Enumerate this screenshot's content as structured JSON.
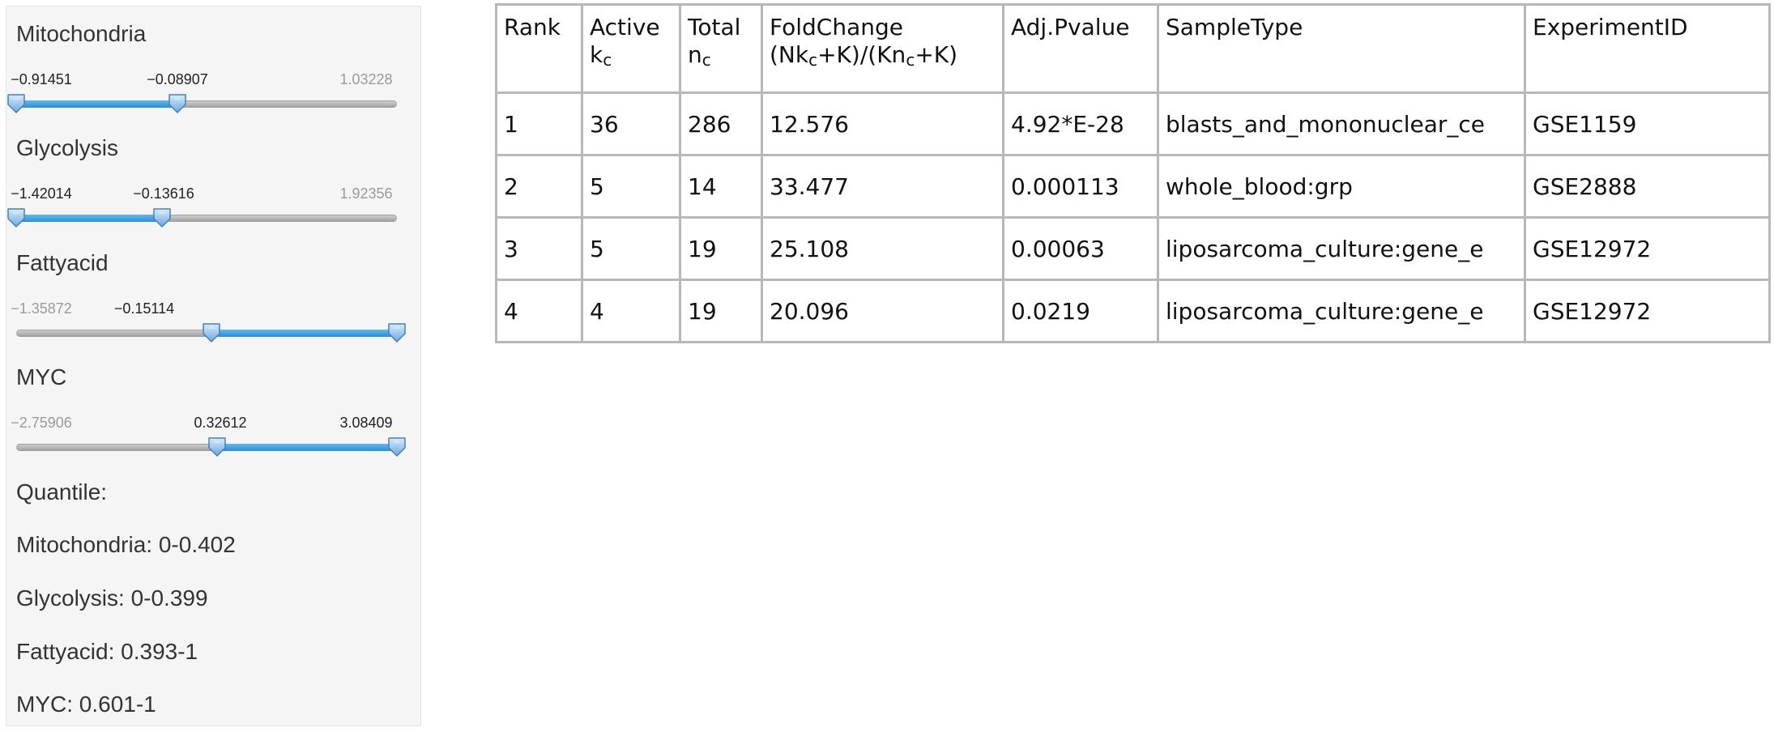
{
  "sliders": [
    {
      "name": "Mitochondria",
      "min_label": "−0.91451",
      "handle_label": "−0.08907",
      "max_label": "1.03228",
      "min": -0.91451,
      "max": 1.03228,
      "range": [
        -0.91451,
        -0.08907
      ]
    },
    {
      "name": "Glycolysis",
      "min_label": "−1.42014",
      "handle_label": "−0.13616",
      "max_label": "1.92356",
      "min": -1.42014,
      "max": 1.92356,
      "range": [
        -1.42014,
        -0.13616
      ]
    },
    {
      "name": "Fattyacid",
      "min_label": "−1.35872",
      "handle_label": "−0.15114",
      "max_label": "",
      "min": -1.35872,
      "max": 1.0,
      "range": [
        -0.15114,
        1.0
      ]
    },
    {
      "name": "MYC",
      "min_label": "−2.75906",
      "handle_label": "0.32612",
      "max_label": "3.08409",
      "min": -2.75906,
      "max": 3.08409,
      "range": [
        0.32612,
        3.08409
      ]
    }
  ],
  "quantile": {
    "heading": "Quantile:",
    "lines": [
      "Mitochondria: 0-0.402",
      "Glycolysis: 0-0.399",
      "Fattyacid: 0.393-1",
      "MYC: 0.601-1"
    ]
  },
  "table": {
    "headers": {
      "rank": "Rank",
      "active_1": "Active",
      "active_2": "k",
      "active_sub": "c",
      "total_1": "Total",
      "total_2": "n",
      "total_sub": "c",
      "fold_1": "FoldChange",
      "fold_2a": "(Nk",
      "fold_2b": "+K)/(Kn",
      "fold_2c": "+K)",
      "fold_sub": "c",
      "pvalue": "Adj.Pvalue",
      "sample": "SampleType",
      "experiment": "ExperimentID"
    },
    "rows": [
      {
        "rank": "1",
        "active": "36",
        "total": "286",
        "fold": "12.576",
        "pvalue": "4.92*E-28",
        "sample": "blasts_and_mononuclear_ce",
        "experiment": "GSE1159"
      },
      {
        "rank": "2",
        "active": "5",
        "total": "14",
        "fold": "33.477",
        "pvalue": "0.000113",
        "sample": "whole_blood:grp",
        "experiment": "GSE2888"
      },
      {
        "rank": "3",
        "active": "5",
        "total": "19",
        "fold": "25.108",
        "pvalue": "0.00063",
        "sample": "liposarcoma_culture:gene_e",
        "experiment": "GSE12972"
      },
      {
        "rank": "4",
        "active": "4",
        "total": "19",
        "fold": "20.096",
        "pvalue": "0.0219",
        "sample": "liposarcoma_culture:gene_e",
        "experiment": "GSE12972"
      }
    ]
  }
}
